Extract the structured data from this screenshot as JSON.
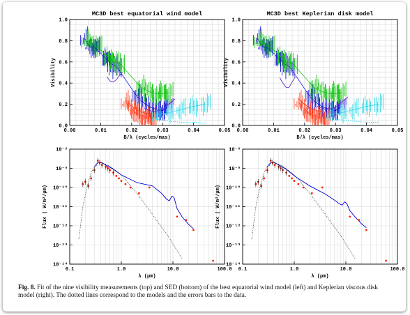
{
  "caption": {
    "label": "Fig. 8.",
    "text": "Fit of the nine visibility measurements (top) and SED (bottom) of the best equatorial wind model (left) and Keplerian viscous disk model (right). The dotted lines correspond to the models and the errors bars to the data."
  },
  "chart_data": [
    {
      "type": "line",
      "title": "MC3D best equatorial wind model",
      "xlabel": "B/λ (cycles/mas)",
      "ylabel": "Visibility",
      "xlim": [
        0.0,
        0.05
      ],
      "ylim": [
        0.0,
        1.0
      ],
      "xticks": [
        "0.00",
        "0.01",
        "0.02",
        "0.03",
        "0.04",
        "0.05"
      ],
      "yticks": [
        "0.0",
        "0.2",
        "0.4",
        "0.6",
        "0.8",
        "1.0"
      ],
      "grid": true,
      "series": [
        {
          "color": "#0000d0",
          "role": "data",
          "x": [
            0.0048,
            0.0065,
            0.0083,
            0.0118,
            0.0136,
            0.0153,
            0.0218,
            0.024,
            0.0262,
            0.0285,
            0.03,
            0.032
          ],
          "y": [
            0.82,
            0.74,
            0.73,
            0.63,
            0.58,
            0.55,
            0.27,
            0.21,
            0.17,
            0.15,
            0.14,
            0.18
          ]
        },
        {
          "color": "#00c000",
          "role": "data",
          "x": [
            0.0052,
            0.0072,
            0.009,
            0.0125,
            0.0145,
            0.0163,
            0.023,
            0.0255,
            0.028,
            0.03,
            0.032
          ],
          "y": [
            0.8,
            0.77,
            0.74,
            0.64,
            0.6,
            0.58,
            0.36,
            0.32,
            0.3,
            0.3,
            0.31
          ]
        },
        {
          "color": "#ff4020",
          "role": "data",
          "x": [
            0.018,
            0.0195,
            0.021,
            0.0225,
            0.024,
            0.0255,
            0.027
          ],
          "y": [
            0.22,
            0.17,
            0.13,
            0.1,
            0.08,
            0.07,
            0.06
          ]
        },
        {
          "color": "#20d8e8",
          "role": "data",
          "x": [
            0.028,
            0.032,
            0.036,
            0.04,
            0.044
          ],
          "y": [
            0.1,
            0.12,
            0.15,
            0.18,
            0.2
          ]
        },
        {
          "color": "#20d8e8",
          "role": "model",
          "x": [
            0.028,
            0.032,
            0.036,
            0.04,
            0.044
          ],
          "y": [
            0.06,
            0.04,
            0.03,
            0.03,
            0.02
          ]
        },
        {
          "color": "#6030c0",
          "role": "model",
          "x": [
            0.012,
            0.013,
            0.014,
            0.015,
            0.016,
            0.017
          ],
          "y": [
            0.46,
            0.42,
            0.41,
            0.43,
            0.47,
            0.5
          ]
        },
        {
          "color": "#6030c0",
          "role": "model",
          "x": [
            0.024,
            0.027,
            0.03,
            0.032,
            0.034
          ],
          "y": [
            0.16,
            0.13,
            0.15,
            0.2,
            0.25
          ]
        },
        {
          "color": "#ff4020",
          "role": "model",
          "x": [
            0.018,
            0.02,
            0.022,
            0.024,
            0.026
          ],
          "y": [
            0.24,
            0.18,
            0.14,
            0.12,
            0.11
          ]
        }
      ]
    },
    {
      "type": "line",
      "title": "MC3D best Keplerian disk model",
      "xlabel": "B/λ (cycles/mas)",
      "ylabel": "Visibility",
      "xlim": [
        0.0,
        0.05
      ],
      "ylim": [
        0.0,
        1.0
      ],
      "xticks": [
        "0.00",
        "0.01",
        "0.02",
        "0.03",
        "0.04",
        "0.05"
      ],
      "yticks": [
        "0.0",
        "0.2",
        "0.4",
        "0.6",
        "0.8",
        "1.0"
      ],
      "grid": true,
      "series": [
        {
          "color": "#0000d0",
          "role": "data",
          "x": [
            0.0048,
            0.0065,
            0.0083,
            0.0118,
            0.0136,
            0.0153,
            0.0218,
            0.024,
            0.0262,
            0.0285,
            0.03,
            0.032
          ],
          "y": [
            0.82,
            0.74,
            0.73,
            0.63,
            0.58,
            0.55,
            0.27,
            0.21,
            0.17,
            0.15,
            0.14,
            0.18
          ]
        },
        {
          "color": "#00c000",
          "role": "data",
          "x": [
            0.0052,
            0.0072,
            0.009,
            0.0125,
            0.0145,
            0.0163,
            0.023,
            0.0255,
            0.028,
            0.03,
            0.032
          ],
          "y": [
            0.8,
            0.77,
            0.74,
            0.64,
            0.6,
            0.58,
            0.36,
            0.32,
            0.3,
            0.3,
            0.31
          ]
        },
        {
          "color": "#ff4020",
          "role": "data",
          "x": [
            0.018,
            0.0195,
            0.021,
            0.0225,
            0.024,
            0.0255,
            0.027
          ],
          "y": [
            0.22,
            0.17,
            0.13,
            0.1,
            0.08,
            0.07,
            0.06
          ]
        },
        {
          "color": "#20d8e8",
          "role": "data",
          "x": [
            0.028,
            0.032,
            0.036,
            0.04,
            0.044
          ],
          "y": [
            0.1,
            0.12,
            0.15,
            0.18,
            0.2
          ]
        },
        {
          "color": "#20d8e8",
          "role": "model",
          "x": [
            0.028,
            0.032,
            0.036,
            0.04,
            0.044
          ],
          "y": [
            0.07,
            0.05,
            0.04,
            0.03,
            0.03
          ]
        },
        {
          "color": "#6030c0",
          "role": "model",
          "x": [
            0.012,
            0.013,
            0.014,
            0.015,
            0.016,
            0.017
          ],
          "y": [
            0.45,
            0.4,
            0.36,
            0.36,
            0.41,
            0.46
          ]
        },
        {
          "color": "#6030c0",
          "role": "model",
          "x": [
            0.024,
            0.027,
            0.03,
            0.032,
            0.034
          ],
          "y": [
            0.18,
            0.15,
            0.17,
            0.22,
            0.27
          ]
        },
        {
          "color": "#ff4020",
          "role": "model",
          "x": [
            0.018,
            0.02,
            0.022,
            0.024,
            0.026
          ],
          "y": [
            0.25,
            0.2,
            0.16,
            0.14,
            0.13
          ]
        }
      ]
    },
    {
      "type": "line",
      "title": "",
      "xlabel": "λ (μm)",
      "ylabel": "Flux  ( W/m²/μm)",
      "xscale": "log",
      "yscale": "log",
      "xlim": [
        0.1,
        100.0
      ],
      "ylim": [
        1e-14,
        1e-08
      ],
      "xticks": [
        "0.1",
        "1.0",
        "10.0",
        "100.0"
      ],
      "yticks": [
        "10⁻¹⁴",
        "10⁻¹³",
        "10⁻¹²",
        "10⁻¹¹",
        "10⁻¹⁰",
        "10⁻⁹",
        "10⁻⁸"
      ],
      "grid": true,
      "series": [
        {
          "color": "#0000d0",
          "role": "model-sed",
          "x": [
            0.3,
            0.35,
            0.4,
            0.5,
            0.7,
            1.0,
            2.0,
            4.0,
            6.0,
            7.5,
            8.5,
            9.5,
            10.5,
            12.0,
            15.0,
            20.0,
            25.0
          ],
          "y": [
            1.2e-09,
            2e-09,
            2.1e-09,
            1.5e-09,
            9e-10,
            4.5e-10,
            1.8e-10,
            1.2e-10,
            5e-11,
            2.5e-11,
            2e-11,
            3.5e-11,
            3e-11,
            8e-12,
            3e-12,
            1.2e-12,
            7e-13
          ]
        },
        {
          "color": "#000000",
          "role": "model-star",
          "x": [
            0.15,
            0.18,
            0.22,
            0.26,
            0.3,
            0.4,
            0.6,
            1.0,
            2.0,
            4.0,
            8.0,
            15.0
          ],
          "y": [
            2e-13,
            1e-11,
            1.2e-10,
            6e-10,
            1.2e-09,
            2e-09,
            1.3e-09,
            4.5e-10,
            5e-11,
            4e-12,
            3e-13,
            2e-14
          ]
        },
        {
          "color": "#ff2000",
          "role": "data",
          "x": [
            0.18,
            0.2,
            0.23,
            0.26,
            0.3,
            0.35,
            0.38,
            0.42,
            0.5,
            0.55,
            0.6,
            0.7,
            0.8,
            0.9,
            1.0,
            1.2,
            1.5,
            2.2,
            3.5,
            12.0,
            18.0,
            25.0,
            60.0
          ],
          "y": [
            1.5e-10,
            2e-10,
            1.2e-10,
            3e-10,
            8e-10,
            2.5e-09,
            2e-09,
            1.5e-09,
            1.2e-09,
            1e-09,
            8e-10,
            6e-10,
            4e-10,
            3e-10,
            2.2e-10,
            1.5e-10,
            1e-10,
            5e-11,
            1e-10,
            3e-12,
            2e-12,
            6e-13,
            1.5e-14
          ]
        }
      ]
    },
    {
      "type": "line",
      "title": "",
      "xlabel": "λ (μm)",
      "ylabel": "Flux  ( W/m²/μm)",
      "xscale": "log",
      "yscale": "log",
      "xlim": [
        0.1,
        100.0
      ],
      "ylim": [
        1e-14,
        1e-08
      ],
      "xticks": [
        "0.1",
        "1.0",
        "10.0",
        "100.0"
      ],
      "yticks": [
        "10⁻¹⁴",
        "10⁻¹³",
        "10⁻¹²",
        "10⁻¹¹",
        "10⁻¹⁰",
        "10⁻⁹",
        "10⁻⁸"
      ],
      "grid": true,
      "series": [
        {
          "color": "#0000d0",
          "role": "model-sed",
          "x": [
            0.3,
            0.35,
            0.4,
            0.5,
            0.7,
            1.0,
            2.0,
            4.0,
            6.0,
            7.5,
            8.5,
            9.5,
            10.5,
            12.0,
            15.0,
            20.0,
            25.0
          ],
          "y": [
            1.2e-09,
            2e-09,
            2.1e-09,
            1.5e-09,
            9e-10,
            4e-10,
            1.2e-10,
            4.5e-11,
            2.2e-11,
            1.4e-11,
            1.2e-11,
            1.8e-11,
            1.4e-11,
            6e-12,
            3e-12,
            1.3e-12,
            8e-13
          ]
        },
        {
          "color": "#000000",
          "role": "model-star",
          "x": [
            0.15,
            0.18,
            0.22,
            0.26,
            0.3,
            0.4,
            0.6,
            1.0,
            2.0,
            4.0,
            8.0,
            15.0
          ],
          "y": [
            2e-13,
            1e-11,
            1.2e-10,
            6e-10,
            1.2e-09,
            2e-09,
            1.3e-09,
            4.5e-10,
            5e-11,
            4e-12,
            3e-13,
            2e-14
          ]
        },
        {
          "color": "#ff2000",
          "role": "data",
          "x": [
            0.18,
            0.2,
            0.23,
            0.26,
            0.3,
            0.35,
            0.38,
            0.42,
            0.5,
            0.55,
            0.6,
            0.7,
            0.8,
            0.9,
            1.0,
            1.2,
            1.5,
            2.2,
            3.5,
            12.0,
            18.0,
            25.0,
            60.0
          ],
          "y": [
            1.5e-10,
            2e-10,
            1.2e-10,
            3e-10,
            8e-10,
            2.5e-09,
            2e-09,
            1.5e-09,
            1.2e-09,
            1e-09,
            8e-10,
            6e-10,
            4e-10,
            3e-10,
            2.2e-10,
            1.5e-10,
            1e-10,
            5e-11,
            1e-10,
            3e-12,
            2e-12,
            6e-13,
            1.5e-14
          ]
        }
      ]
    }
  ]
}
